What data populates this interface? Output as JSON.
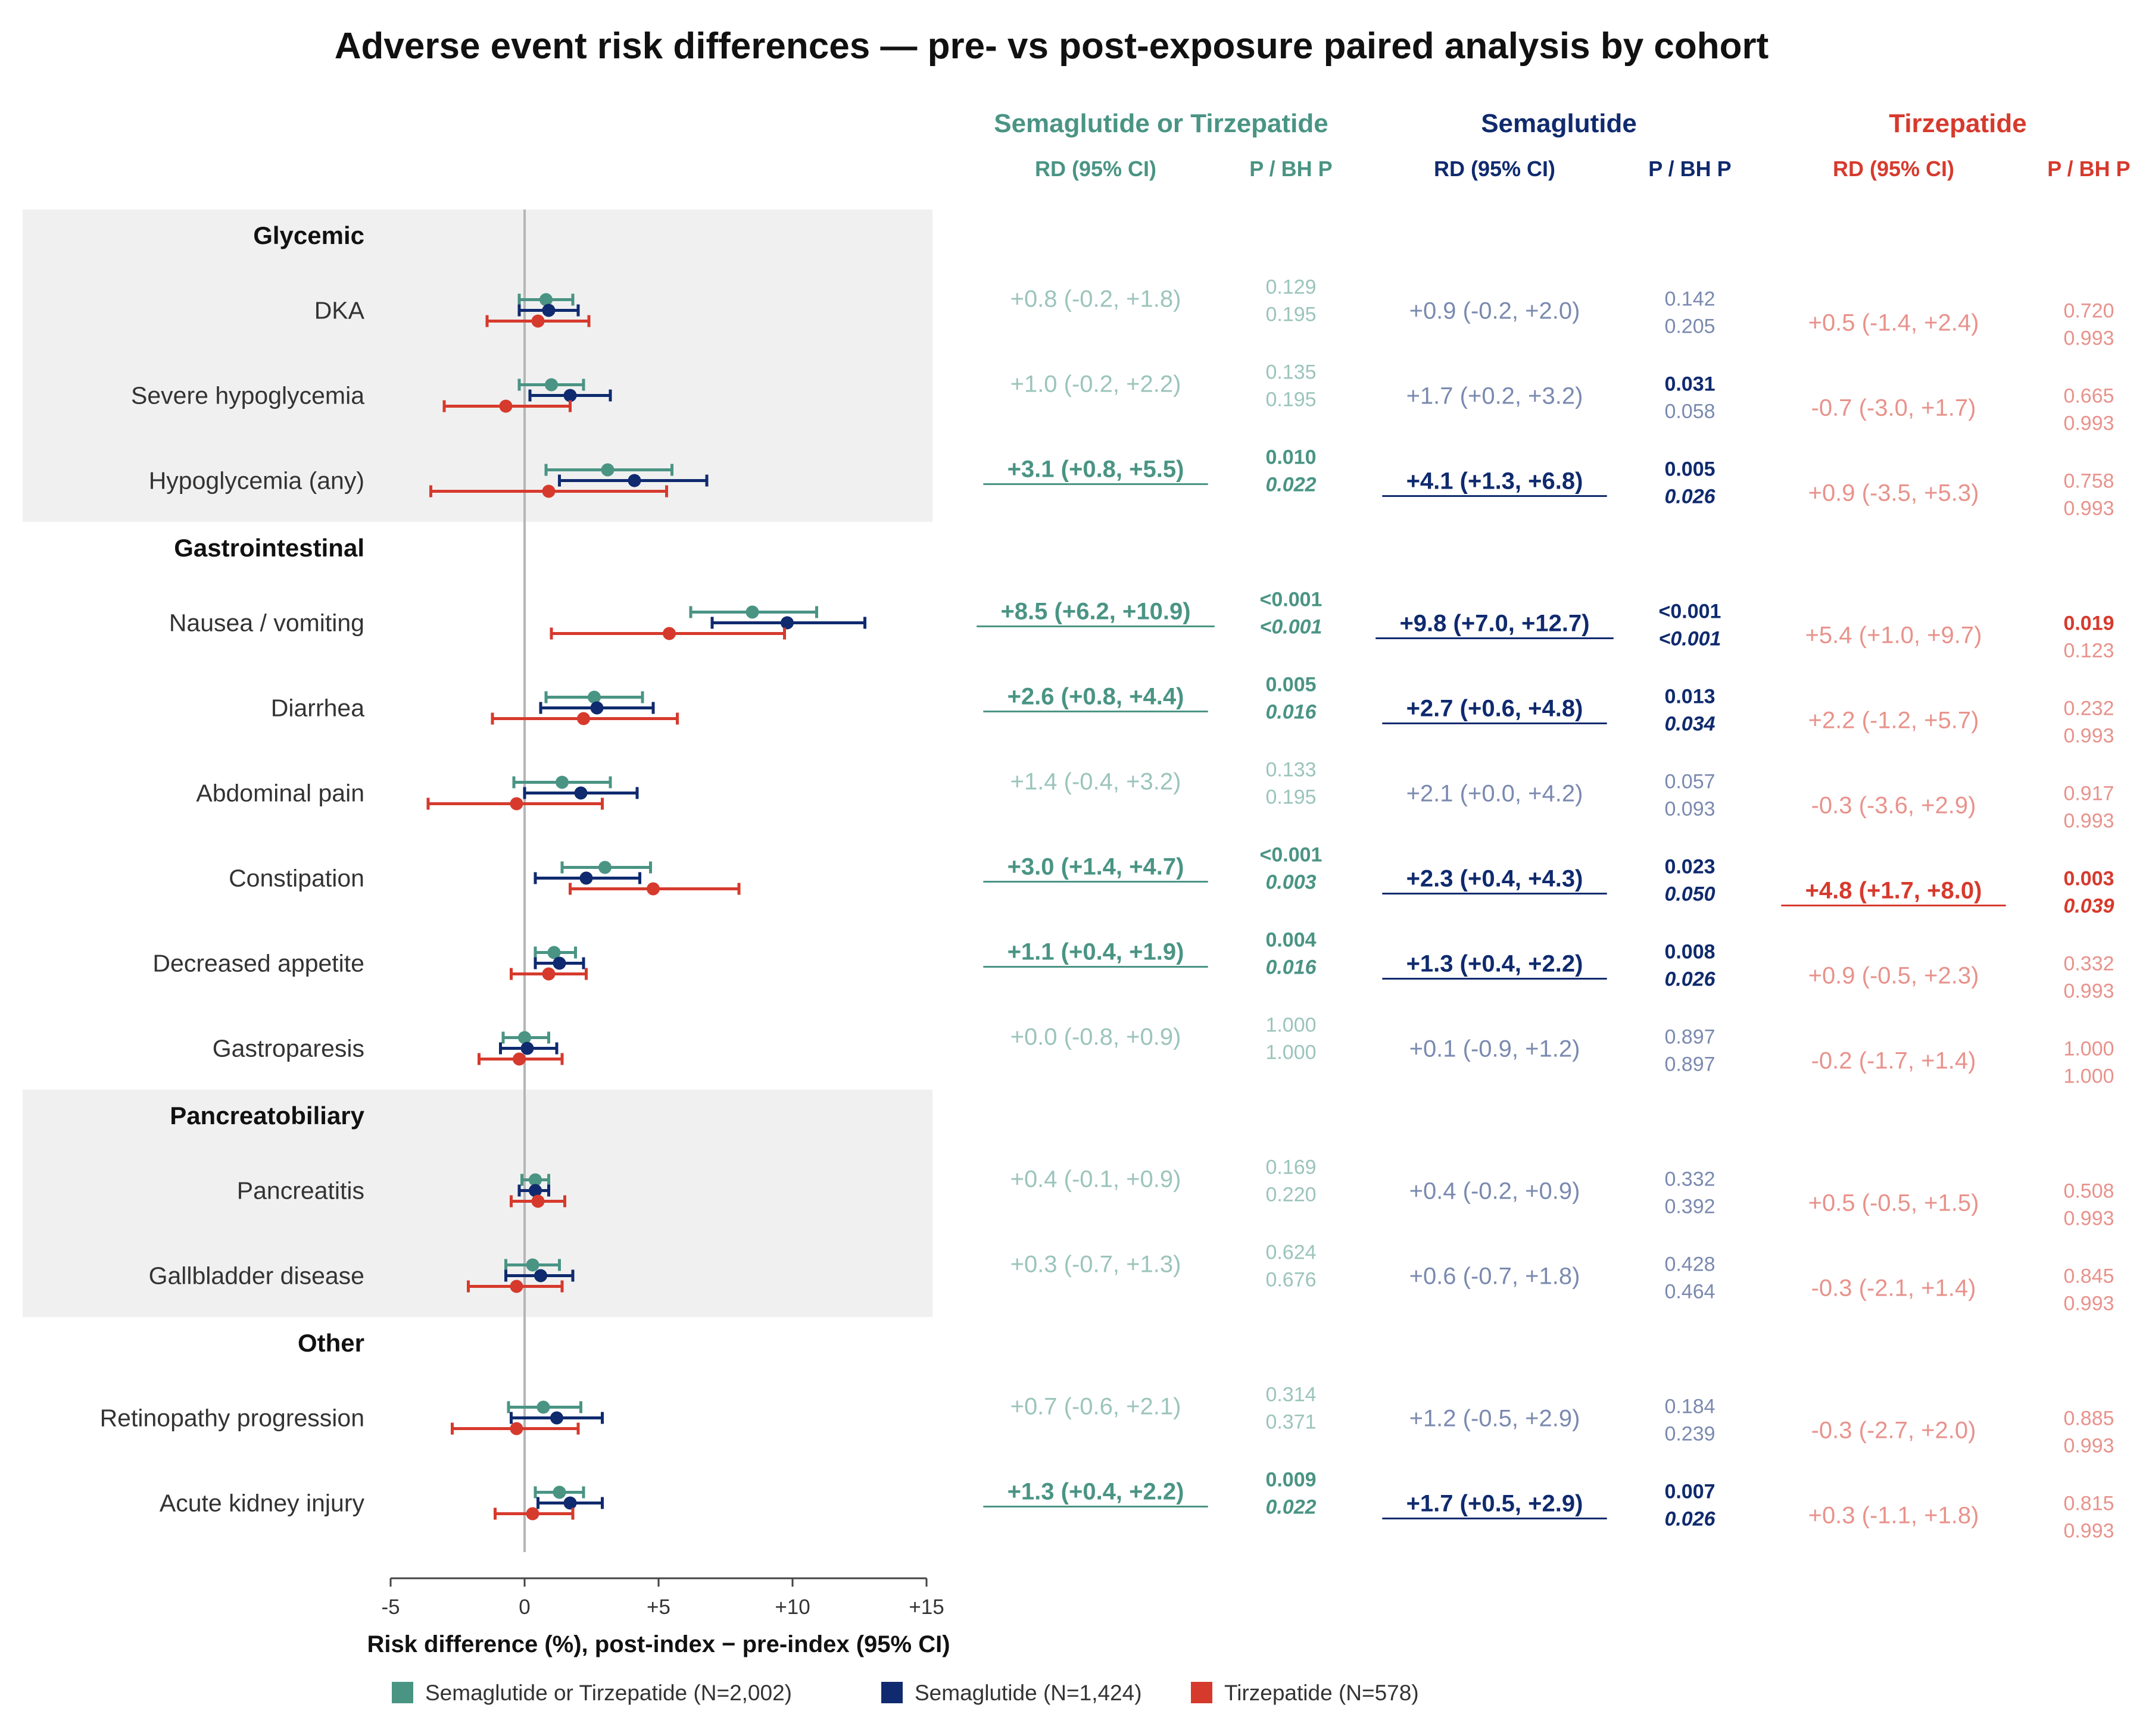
{
  "title": "Adverse event risk differences — pre- vs post-exposure paired analysis by cohort",
  "colors": {
    "combined": "#4a9484",
    "semaglutide": "#0f2a6e",
    "tirzepatide": "#d63a2d",
    "panel_bg": "#f0f0f0",
    "zero_line": "#b5b5b5"
  },
  "cohorts": [
    {
      "key": "combined",
      "name": "Semaglutide or Tirzepatide",
      "rd_header": "RD (95% CI)",
      "p_header": "P / BH P"
    },
    {
      "key": "semaglutide",
      "name": "Semaglutide",
      "rd_header": "RD (95% CI)",
      "p_header": "P / BH P"
    },
    {
      "key": "tirzepatide",
      "name": "Tirzepatide",
      "rd_header": "RD (95% CI)",
      "p_header": "P / BH P"
    }
  ],
  "legend": [
    {
      "key": "combined",
      "label": "Semaglutide or Tirzepatide (N=2,002)"
    },
    {
      "key": "semaglutide",
      "label": "Semaglutide (N=1,424)"
    },
    {
      "key": "tirzepatide",
      "label": "Tirzepatide (N=578)"
    }
  ],
  "chart_data": {
    "type": "forest",
    "xlabel": "Risk difference (%), post-index − pre-index (95% CI)",
    "xlim": [
      -5,
      15
    ],
    "xticks": [
      -5,
      0,
      5,
      10,
      15
    ],
    "xtick_labels": [
      "-5",
      "0",
      "+5",
      "+10",
      "+15"
    ],
    "zero_line": 0,
    "groups": [
      {
        "name": "Glycemic",
        "shaded": true,
        "outcomes": [
          {
            "name": "DKA",
            "combined": {
              "rd": 0.8,
              "lo": -0.2,
              "hi": 1.8,
              "label": "+0.8 (-0.2, +1.8)",
              "p": "0.129",
              "bh": "0.195",
              "sig": false
            },
            "semaglutide": {
              "rd": 0.9,
              "lo": -0.2,
              "hi": 2.0,
              "label": "+0.9 (-0.2, +2.0)",
              "p": "0.142",
              "bh": "0.205",
              "sig": false
            },
            "tirzepatide": {
              "rd": 0.5,
              "lo": -1.4,
              "hi": 2.4,
              "label": "+0.5 (-1.4, +2.4)",
              "p": "0.720",
              "bh": "0.993",
              "sig": false
            }
          },
          {
            "name": "Severe hypoglycemia",
            "combined": {
              "rd": 1.0,
              "lo": -0.2,
              "hi": 2.2,
              "label": "+1.0 (-0.2, +2.2)",
              "p": "0.135",
              "bh": "0.195",
              "sig": false
            },
            "semaglutide": {
              "rd": 1.7,
              "lo": 0.2,
              "hi": 3.2,
              "label": "+1.7 (+0.2, +3.2)",
              "p": "0.031",
              "bh": "0.058",
              "sig": "p"
            },
            "tirzepatide": {
              "rd": -0.7,
              "lo": -3.0,
              "hi": 1.7,
              "label": "-0.7 (-3.0, +1.7)",
              "p": "0.665",
              "bh": "0.993",
              "sig": false
            }
          },
          {
            "name": "Hypoglycemia (any)",
            "combined": {
              "rd": 3.1,
              "lo": 0.8,
              "hi": 5.5,
              "label": "+3.1 (+0.8, +5.5)",
              "p": "0.010",
              "bh": "0.022",
              "sig": "bh"
            },
            "semaglutide": {
              "rd": 4.1,
              "lo": 1.3,
              "hi": 6.8,
              "label": "+4.1 (+1.3, +6.8)",
              "p": "0.005",
              "bh": "0.026",
              "sig": "bh"
            },
            "tirzepatide": {
              "rd": 0.9,
              "lo": -3.5,
              "hi": 5.3,
              "label": "+0.9 (-3.5, +5.3)",
              "p": "0.758",
              "bh": "0.993",
              "sig": false
            }
          }
        ]
      },
      {
        "name": "Gastrointestinal",
        "shaded": false,
        "outcomes": [
          {
            "name": "Nausea / vomiting",
            "combined": {
              "rd": 8.5,
              "lo": 6.2,
              "hi": 10.9,
              "label": "+8.5 (+6.2, +10.9)",
              "p": "<0.001",
              "bh": "<0.001",
              "sig": "bh"
            },
            "semaglutide": {
              "rd": 9.8,
              "lo": 7.0,
              "hi": 12.7,
              "label": "+9.8 (+7.0, +12.7)",
              "p": "<0.001",
              "bh": "<0.001",
              "sig": "bh"
            },
            "tirzepatide": {
              "rd": 5.4,
              "lo": 1.0,
              "hi": 9.7,
              "label": "+5.4 (+1.0, +9.7)",
              "p": "0.019",
              "bh": "0.123",
              "sig": "p"
            }
          },
          {
            "name": "Diarrhea",
            "combined": {
              "rd": 2.6,
              "lo": 0.8,
              "hi": 4.4,
              "label": "+2.6 (+0.8, +4.4)",
              "p": "0.005",
              "bh": "0.016",
              "sig": "bh"
            },
            "semaglutide": {
              "rd": 2.7,
              "lo": 0.6,
              "hi": 4.8,
              "label": "+2.7 (+0.6, +4.8)",
              "p": "0.013",
              "bh": "0.034",
              "sig": "bh"
            },
            "tirzepatide": {
              "rd": 2.2,
              "lo": -1.2,
              "hi": 5.7,
              "label": "+2.2 (-1.2, +5.7)",
              "p": "0.232",
              "bh": "0.993",
              "sig": false
            }
          },
          {
            "name": "Abdominal pain",
            "combined": {
              "rd": 1.4,
              "lo": -0.4,
              "hi": 3.2,
              "label": "+1.4 (-0.4, +3.2)",
              "p": "0.133",
              "bh": "0.195",
              "sig": false
            },
            "semaglutide": {
              "rd": 2.1,
              "lo": 0.0,
              "hi": 4.2,
              "label": "+2.1 (+0.0, +4.2)",
              "p": "0.057",
              "bh": "0.093",
              "sig": false
            },
            "tirzepatide": {
              "rd": -0.3,
              "lo": -3.6,
              "hi": 2.9,
              "label": "-0.3 (-3.6, +2.9)",
              "p": "0.917",
              "bh": "0.993",
              "sig": false
            }
          },
          {
            "name": "Constipation",
            "combined": {
              "rd": 3.0,
              "lo": 1.4,
              "hi": 4.7,
              "label": "+3.0 (+1.4, +4.7)",
              "p": "<0.001",
              "bh": "0.003",
              "sig": "bh"
            },
            "semaglutide": {
              "rd": 2.3,
              "lo": 0.4,
              "hi": 4.3,
              "label": "+2.3 (+0.4, +4.3)",
              "p": "0.023",
              "bh": "0.050",
              "sig": "bh"
            },
            "tirzepatide": {
              "rd": 4.8,
              "lo": 1.7,
              "hi": 8.0,
              "label": "+4.8 (+1.7, +8.0)",
              "p": "0.003",
              "bh": "0.039",
              "sig": "bh"
            }
          },
          {
            "name": "Decreased appetite",
            "combined": {
              "rd": 1.1,
              "lo": 0.4,
              "hi": 1.9,
              "label": "+1.1 (+0.4, +1.9)",
              "p": "0.004",
              "bh": "0.016",
              "sig": "bh"
            },
            "semaglutide": {
              "rd": 1.3,
              "lo": 0.4,
              "hi": 2.2,
              "label": "+1.3 (+0.4, +2.2)",
              "p": "0.008",
              "bh": "0.026",
              "sig": "bh"
            },
            "tirzepatide": {
              "rd": 0.9,
              "lo": -0.5,
              "hi": 2.3,
              "label": "+0.9 (-0.5, +2.3)",
              "p": "0.332",
              "bh": "0.993",
              "sig": false
            }
          },
          {
            "name": "Gastroparesis",
            "combined": {
              "rd": 0.0,
              "lo": -0.8,
              "hi": 0.9,
              "label": "+0.0 (-0.8, +0.9)",
              "p": "1.000",
              "bh": "1.000",
              "sig": false
            },
            "semaglutide": {
              "rd": 0.1,
              "lo": -0.9,
              "hi": 1.2,
              "label": "+0.1 (-0.9, +1.2)",
              "p": "0.897",
              "bh": "0.897",
              "sig": false
            },
            "tirzepatide": {
              "rd": -0.2,
              "lo": -1.7,
              "hi": 1.4,
              "label": "-0.2 (-1.7, +1.4)",
              "p": "1.000",
              "bh": "1.000",
              "sig": false
            }
          }
        ]
      },
      {
        "name": "Pancreatobiliary",
        "shaded": true,
        "outcomes": [
          {
            "name": "Pancreatitis",
            "combined": {
              "rd": 0.4,
              "lo": -0.1,
              "hi": 0.9,
              "label": "+0.4 (-0.1, +0.9)",
              "p": "0.169",
              "bh": "0.220",
              "sig": false
            },
            "semaglutide": {
              "rd": 0.4,
              "lo": -0.2,
              "hi": 0.9,
              "label": "+0.4 (-0.2, +0.9)",
              "p": "0.332",
              "bh": "0.392",
              "sig": false
            },
            "tirzepatide": {
              "rd": 0.5,
              "lo": -0.5,
              "hi": 1.5,
              "label": "+0.5 (-0.5, +1.5)",
              "p": "0.508",
              "bh": "0.993",
              "sig": false
            }
          },
          {
            "name": "Gallbladder disease",
            "combined": {
              "rd": 0.3,
              "lo": -0.7,
              "hi": 1.3,
              "label": "+0.3 (-0.7, +1.3)",
              "p": "0.624",
              "bh": "0.676",
              "sig": false
            },
            "semaglutide": {
              "rd": 0.6,
              "lo": -0.7,
              "hi": 1.8,
              "label": "+0.6 (-0.7, +1.8)",
              "p": "0.428",
              "bh": "0.464",
              "sig": false
            },
            "tirzepatide": {
              "rd": -0.3,
              "lo": -2.1,
              "hi": 1.4,
              "label": "-0.3 (-2.1, +1.4)",
              "p": "0.845",
              "bh": "0.993",
              "sig": false
            }
          }
        ]
      },
      {
        "name": "Other",
        "shaded": false,
        "outcomes": [
          {
            "name": "Retinopathy progression",
            "combined": {
              "rd": 0.7,
              "lo": -0.6,
              "hi": 2.1,
              "label": "+0.7 (-0.6, +2.1)",
              "p": "0.314",
              "bh": "0.371",
              "sig": false
            },
            "semaglutide": {
              "rd": 1.2,
              "lo": -0.5,
              "hi": 2.9,
              "label": "+1.2 (-0.5, +2.9)",
              "p": "0.184",
              "bh": "0.239",
              "sig": false
            },
            "tirzepatide": {
              "rd": -0.3,
              "lo": -2.7,
              "hi": 2.0,
              "label": "-0.3 (-2.7, +2.0)",
              "p": "0.885",
              "bh": "0.993",
              "sig": false
            }
          },
          {
            "name": "Acute kidney injury",
            "combined": {
              "rd": 1.3,
              "lo": 0.4,
              "hi": 2.2,
              "label": "+1.3 (+0.4, +2.2)",
              "p": "0.009",
              "bh": "0.022",
              "sig": "bh"
            },
            "semaglutide": {
              "rd": 1.7,
              "lo": 0.5,
              "hi": 2.9,
              "label": "+1.7 (+0.5, +2.9)",
              "p": "0.007",
              "bh": "0.026",
              "sig": "bh"
            },
            "tirzepatide": {
              "rd": 0.3,
              "lo": -1.1,
              "hi": 1.8,
              "label": "+0.3 (-1.1, +1.8)",
              "p": "0.815",
              "bh": "0.993",
              "sig": false
            }
          }
        ]
      }
    ]
  }
}
